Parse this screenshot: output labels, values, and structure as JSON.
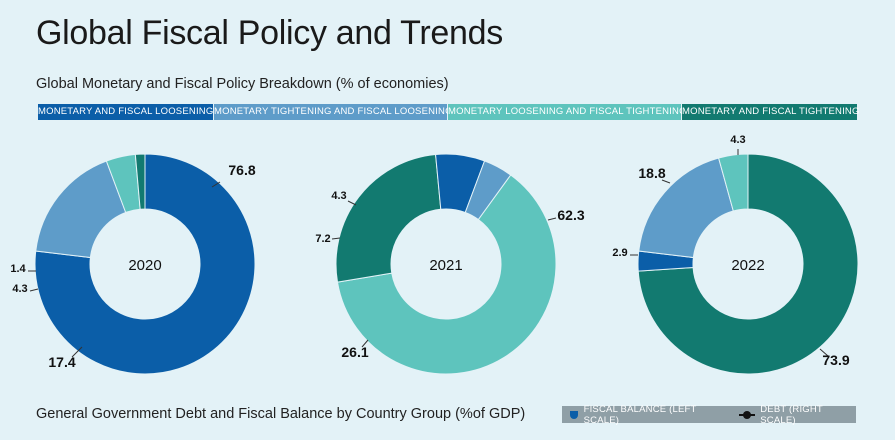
{
  "page": {
    "title": "Global Fiscal Policy and Trends",
    "subtitle": "Global Monetary and Fiscal Policy Breakdown (% of economies)",
    "bottom_title": "General Government Debt and Fiscal Balance by Country Group (%of GDP)"
  },
  "legend": [
    {
      "label": "MONETARY AND FISCAL LOOSENING",
      "color": "#0b5ea8"
    },
    {
      "label": "MONETARY TIGHTENING AND FISCAL LOOSENING",
      "color": "#5e9cc9"
    },
    {
      "label": "MONETARY LOOSENING AND FISCAL TIGHTENING",
      "color": "#5ec4bd"
    },
    {
      "label": "MONETARY AND FISCAL TIGHTENING",
      "color": "#127a70"
    }
  ],
  "bottom_legend": {
    "fiscal_label": "FISCAL BALANCE (LEFT SCALE)",
    "debt_label": "DEBT (RIGHT SCALE)",
    "fiscal_color": "#0b5ea8",
    "debt_color": "#111111"
  },
  "chart_data": [
    {
      "type": "pie",
      "center_label": "2020",
      "categories": [
        "MONETARY AND FISCAL LOOSENING",
        "MONETARY TIGHTENING AND FISCAL LOOSENING",
        "MONETARY LOOSENING AND FISCAL TIGHTENING",
        "MONETARY AND FISCAL TIGHTENING"
      ],
      "values": [
        76.8,
        17.4,
        4.3,
        1.4
      ],
      "data_labels": [
        "76.8",
        "17.4",
        "4.3",
        "1.4"
      ]
    },
    {
      "type": "pie",
      "center_label": "2021",
      "categories": [
        "MONETARY AND FISCAL LOOSENING",
        "MONETARY TIGHTENING AND FISCAL LOOSENING",
        "MONETARY LOOSENING AND FISCAL TIGHTENING",
        "MONETARY AND FISCAL TIGHTENING"
      ],
      "values": [
        7.2,
        4.3,
        62.3,
        26.1
      ],
      "data_labels": [
        "7.2",
        "4.3",
        "62.3",
        "26.1"
      ]
    },
    {
      "type": "pie",
      "center_label": "2022",
      "categories": [
        "MONETARY AND FISCAL LOOSENING",
        "MONETARY TIGHTENING AND FISCAL LOOSENING",
        "MONETARY LOOSENING AND FISCAL TIGHTENING",
        "MONETARY AND FISCAL TIGHTENING"
      ],
      "values": [
        2.9,
        18.8,
        4.3,
        73.9
      ],
      "data_labels": [
        "2.9",
        "18.8",
        "4.3",
        "73.9"
      ]
    }
  ]
}
